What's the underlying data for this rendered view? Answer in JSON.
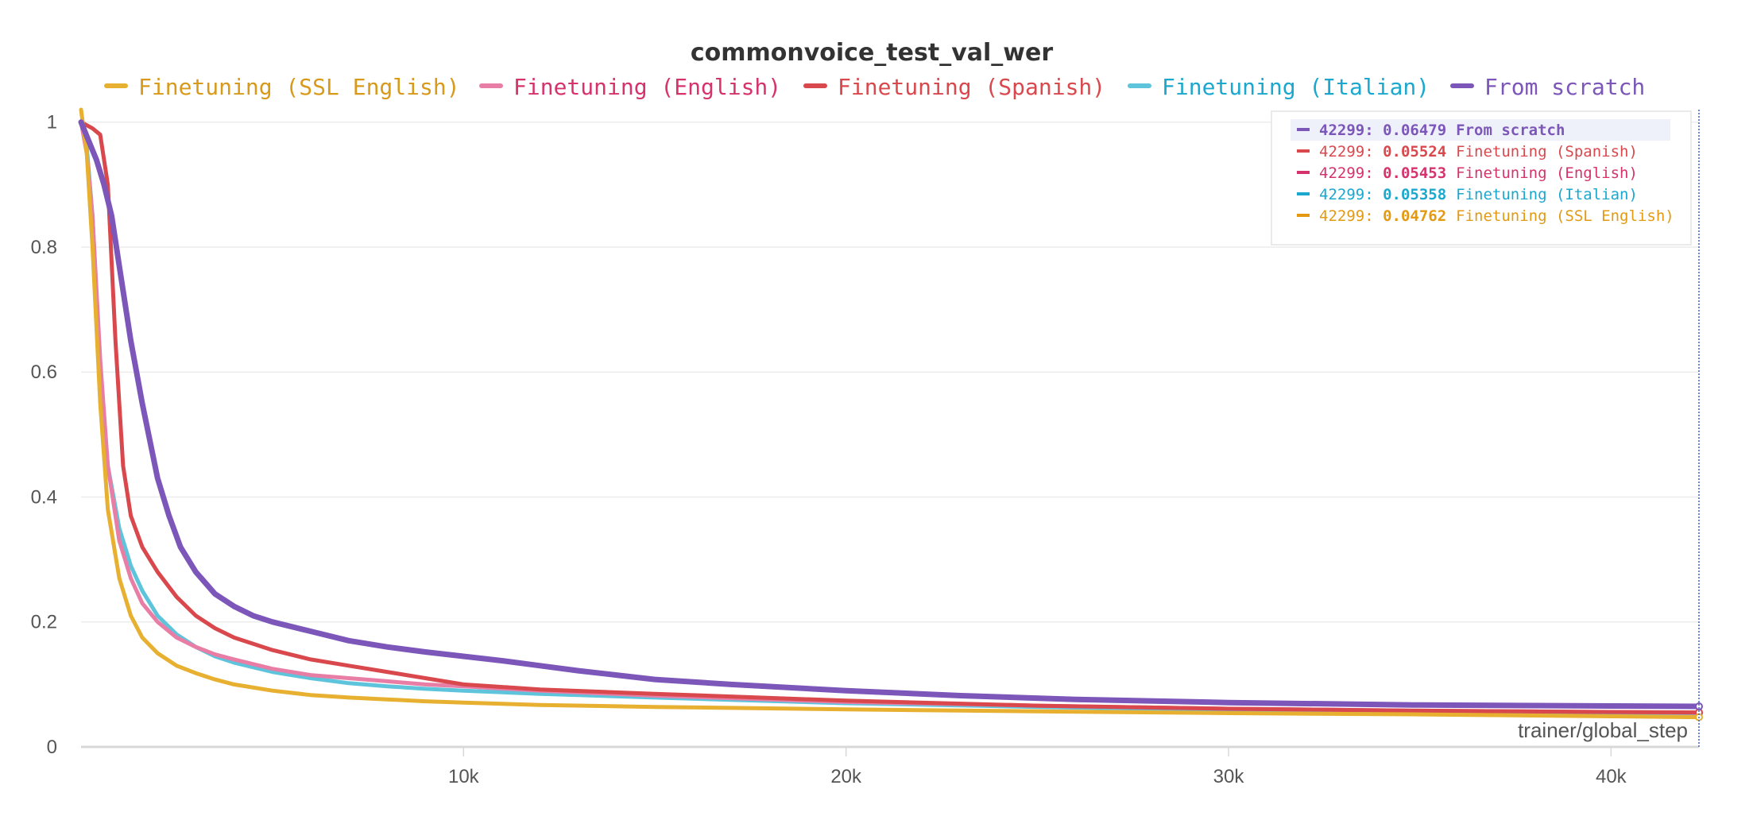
{
  "chart_data": {
    "type": "line",
    "title": "commonvoice_test_val_wer",
    "xlabel": "trainer/global_step",
    "ylabel": "",
    "xlim": [
      0,
      42299
    ],
    "ylim": [
      0,
      1.02
    ],
    "x_ticks": [
      {
        "value": 10000,
        "label": "10k"
      },
      {
        "value": 20000,
        "label": "20k"
      },
      {
        "value": 30000,
        "label": "30k"
      },
      {
        "value": 40000,
        "label": "40k"
      }
    ],
    "y_ticks": [
      {
        "value": 0,
        "label": "0"
      },
      {
        "value": 0.2,
        "label": "0.2"
      },
      {
        "value": 0.4,
        "label": "0.4"
      },
      {
        "value": 0.6,
        "label": "0.6"
      },
      {
        "value": 0.8,
        "label": "0.8"
      },
      {
        "value": 1,
        "label": "1"
      }
    ],
    "grid": true,
    "legend_position": "top",
    "series": [
      {
        "name": "Finetuning (SSL English)",
        "color": "#e8b030",
        "x": [
          0,
          150,
          300,
          500,
          700,
          1000,
          1300,
          1600,
          2000,
          2500,
          3000,
          3500,
          4000,
          5000,
          6000,
          7000,
          8000,
          9000,
          10000,
          12000,
          15000,
          20000,
          25000,
          30000,
          35000,
          40000,
          42299
        ],
        "y": [
          1.02,
          0.95,
          0.8,
          0.55,
          0.38,
          0.27,
          0.21,
          0.175,
          0.15,
          0.13,
          0.118,
          0.108,
          0.1,
          0.09,
          0.083,
          0.079,
          0.076,
          0.073,
          0.071,
          0.067,
          0.064,
          0.06,
          0.057,
          0.054,
          0.052,
          0.049,
          0.0476
        ]
      },
      {
        "name": "Finetuning (English)",
        "color": "#e87da5",
        "x": [
          0,
          150,
          300,
          500,
          700,
          1000,
          1300,
          1600,
          2000,
          2500,
          3000,
          3500,
          4000,
          5000,
          6000,
          7000,
          8000,
          9000,
          10000,
          12000,
          15000,
          20000,
          25000,
          30000,
          35000,
          40000,
          42299
        ],
        "y": [
          1.0,
          0.95,
          0.85,
          0.62,
          0.45,
          0.33,
          0.27,
          0.23,
          0.2,
          0.175,
          0.16,
          0.148,
          0.14,
          0.125,
          0.115,
          0.11,
          0.105,
          0.1,
          0.097,
          0.09,
          0.082,
          0.072,
          0.066,
          0.061,
          0.058,
          0.056,
          0.0545
        ]
      },
      {
        "name": "Finetuning (Spanish)",
        "color": "#d9484d",
        "x": [
          0,
          300,
          500,
          700,
          900,
          1100,
          1300,
          1600,
          2000,
          2500,
          3000,
          3500,
          4000,
          5000,
          6000,
          7000,
          8000,
          9000,
          10000,
          12000,
          15000,
          20000,
          25000,
          30000,
          35000,
          40000,
          42299
        ],
        "y": [
          1.0,
          0.99,
          0.98,
          0.9,
          0.65,
          0.45,
          0.37,
          0.32,
          0.28,
          0.24,
          0.21,
          0.19,
          0.175,
          0.155,
          0.14,
          0.13,
          0.12,
          0.11,
          0.1,
          0.092,
          0.085,
          0.074,
          0.066,
          0.061,
          0.058,
          0.0558,
          0.0552
        ]
      },
      {
        "name": "Finetuning (Italian)",
        "color": "#5ec4dc",
        "x": [
          0,
          150,
          300,
          500,
          700,
          1000,
          1300,
          1600,
          2000,
          2500,
          3000,
          3500,
          4000,
          5000,
          6000,
          7000,
          8000,
          9000,
          10000,
          12000,
          15000,
          20000,
          25000,
          30000,
          35000,
          40000,
          42299
        ],
        "y": [
          1.0,
          0.96,
          0.85,
          0.6,
          0.45,
          0.35,
          0.29,
          0.25,
          0.21,
          0.18,
          0.16,
          0.145,
          0.135,
          0.12,
          0.11,
          0.102,
          0.097,
          0.093,
          0.09,
          0.085,
          0.079,
          0.07,
          0.064,
          0.059,
          0.056,
          0.0539,
          0.0536
        ]
      },
      {
        "name": "From scratch",
        "color": "#7c56b9",
        "x": [
          0,
          200,
          400,
          600,
          800,
          1000,
          1300,
          1600,
          2000,
          2300,
          2600,
          3000,
          3500,
          4000,
          4500,
          5000,
          6000,
          7000,
          8000,
          9000,
          10000,
          11000,
          12000,
          13000,
          14000,
          15000,
          17000,
          20000,
          23000,
          26000,
          30000,
          35000,
          40000,
          42299
        ],
        "y": [
          1.0,
          0.97,
          0.94,
          0.9,
          0.85,
          0.77,
          0.65,
          0.55,
          0.43,
          0.37,
          0.32,
          0.28,
          0.245,
          0.225,
          0.21,
          0.2,
          0.185,
          0.17,
          0.16,
          0.152,
          0.145,
          0.138,
          0.13,
          0.122,
          0.115,
          0.108,
          0.1,
          0.09,
          0.082,
          0.076,
          0.071,
          0.067,
          0.0655,
          0.0648
        ]
      }
    ]
  },
  "tooltip": {
    "rows": [
      {
        "step": "42299:",
        "value": "0.06479",
        "name": "From scratch",
        "color": "#7c56b9",
        "highlight": true
      },
      {
        "step": "42299:",
        "value": "0.05524",
        "name": "Finetuning (Spanish)",
        "color": "#d9484d",
        "highlight": false
      },
      {
        "step": "42299:",
        "value": "0.05453",
        "name": "Finetuning (English)",
        "color": "#d6336c",
        "highlight": false
      },
      {
        "step": "42299:",
        "value": "0.05358",
        "name": "Finetuning (Italian)",
        "color": "#1ba8cf",
        "highlight": false
      },
      {
        "step": "42299:",
        "value": "0.04762",
        "name": "Finetuning (SSL English)",
        "color": "#e39a12",
        "highlight": false
      }
    ]
  },
  "legend_text_colors": [
    "#d89a1a",
    "#d6336c",
    "#d9484d",
    "#1ba8cf",
    "#7c56b9"
  ]
}
